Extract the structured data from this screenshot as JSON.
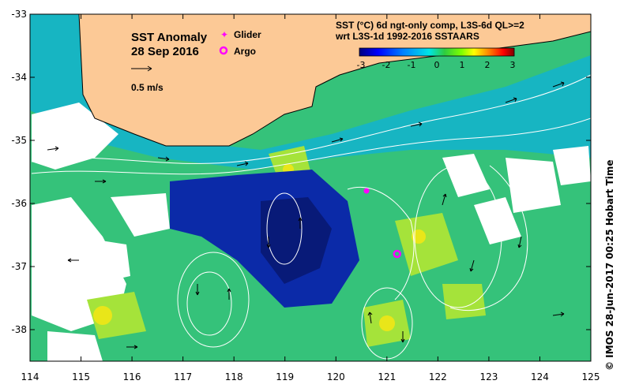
{
  "title": {
    "line1": "SST Anomaly",
    "line2": "28 Sep 2016"
  },
  "scale_arrow_label": "0.5 m/s",
  "legend": {
    "glider": "Glider",
    "argo": "Argo",
    "glider_color": "#ff00ff",
    "argo_color": "#ff00ff"
  },
  "colorbar": {
    "line1": "SST (°C) 6d ngt-only comp, L3S-6d QL>=2",
    "line2": "wrt L3S-1d 1992-2016 SSTAARS",
    "ticks": [
      "-3",
      "-2",
      "-1",
      "0",
      "1",
      "2",
      "3"
    ],
    "colors": [
      "#00007f",
      "#0000ff",
      "#007fff",
      "#00e5e5",
      "#2ecc40",
      "#7fff00",
      "#ffff00",
      "#ff7f00",
      "#ff0000",
      "#7f0000"
    ]
  },
  "axes": {
    "x_ticks": [
      "114",
      "115",
      "116",
      "117",
      "118",
      "119",
      "120",
      "121",
      "122",
      "123",
      "124",
      "125"
    ],
    "y_ticks": [
      "-33",
      "-34",
      "-35",
      "-36",
      "-37",
      "-38"
    ],
    "x_range": [
      114,
      125
    ],
    "y_range": [
      -38.5,
      -33
    ]
  },
  "credit": "© IMOS 28-Jun-2017 00:25 Hobart Time",
  "colors": {
    "land": "#fcc996",
    "ocean_base": "#3cc37a",
    "cold": "#0a1f9e",
    "contour": "#ffffff"
  },
  "markers": {
    "glider": {
      "lon": 120.6,
      "lat": -35.8
    },
    "argo": {
      "lon": 121.2,
      "lat": -36.8
    }
  }
}
